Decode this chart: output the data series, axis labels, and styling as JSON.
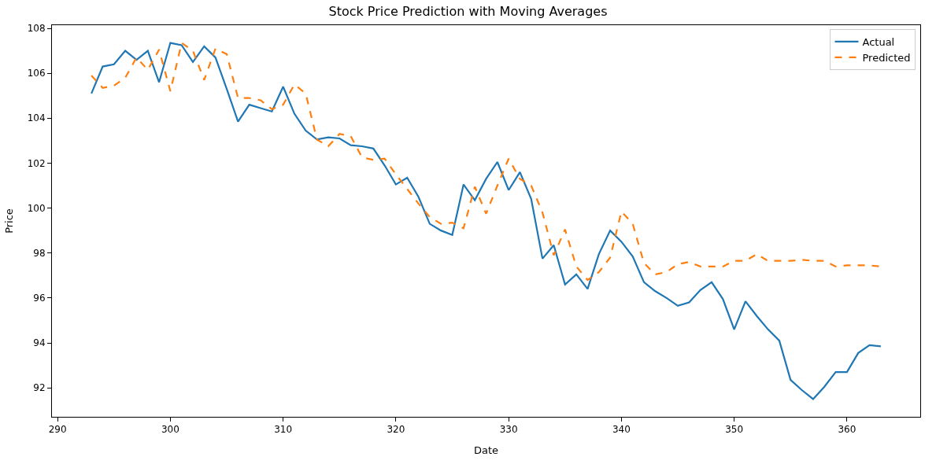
{
  "chart_data": {
    "type": "line",
    "title": "Stock Price Prediction with Moving Averages",
    "xlabel": "Date",
    "ylabel": "Price",
    "x": [
      293,
      294,
      295,
      296,
      297,
      298,
      299,
      300,
      301,
      302,
      303,
      304,
      305,
      306,
      307,
      308,
      309,
      310,
      311,
      312,
      313,
      314,
      315,
      316,
      317,
      318,
      319,
      320,
      321,
      322,
      323,
      324,
      325,
      326,
      327,
      328,
      329,
      330,
      331,
      332,
      333,
      334,
      335,
      336,
      337,
      338,
      339,
      340,
      341,
      342,
      343,
      344,
      345,
      346,
      347,
      348,
      349,
      350,
      351,
      352,
      353,
      354,
      355,
      356,
      357,
      358,
      359,
      360,
      361,
      362,
      363
    ],
    "series": [
      {
        "name": "Actual",
        "color": "#1f77b4",
        "line_style": "solid",
        "values": [
          105.1,
          106.3,
          106.4,
          107.0,
          106.6,
          107.0,
          105.6,
          107.35,
          107.25,
          106.5,
          107.2,
          106.7,
          105.3,
          103.85,
          104.6,
          104.45,
          104.3,
          105.4,
          104.2,
          103.45,
          103.05,
          103.15,
          103.1,
          102.8,
          102.75,
          102.65,
          101.9,
          101.05,
          101.35,
          100.5,
          99.3,
          99.0,
          98.8,
          101.05,
          100.35,
          101.3,
          102.05,
          100.8,
          101.6,
          100.4,
          97.75,
          98.35,
          96.6,
          97.05,
          96.4,
          97.95,
          99.0,
          98.5,
          97.85,
          96.7,
          96.3,
          96.0,
          95.65,
          95.8,
          96.35,
          96.7,
          95.95,
          94.6,
          95.85,
          95.2,
          94.6,
          94.1,
          92.35,
          91.9,
          91.5,
          92.05,
          92.7,
          92.7,
          93.55,
          93.9,
          93.85
        ]
      },
      {
        "name": "Predicted",
        "color": "#ff7f0e",
        "line_style": "dashed",
        "values": [
          105.9,
          105.35,
          105.45,
          105.8,
          106.7,
          106.15,
          107.05,
          105.2,
          107.35,
          107.0,
          105.7,
          107.1,
          106.85,
          104.9,
          104.9,
          104.8,
          104.4,
          104.6,
          105.5,
          105.1,
          103.05,
          102.75,
          103.3,
          103.2,
          102.25,
          102.15,
          102.2,
          101.5,
          100.85,
          100.2,
          99.6,
          99.3,
          99.35,
          99.1,
          100.95,
          99.75,
          101.0,
          102.2,
          101.3,
          101.0,
          99.8,
          97.9,
          99.05,
          97.4,
          96.8,
          97.15,
          97.8,
          99.85,
          99.3,
          97.55,
          97.05,
          97.15,
          97.5,
          97.6,
          97.4,
          97.4,
          97.4,
          97.65,
          97.65,
          97.95,
          97.65,
          97.65,
          97.65,
          97.7,
          97.65,
          97.65,
          97.4,
          97.45,
          97.45,
          97.45,
          97.4
        ]
      }
    ],
    "xlim": [
      289.5,
      366.5
    ],
    "xticks": [
      290,
      300,
      310,
      320,
      330,
      340,
      350,
      360
    ],
    "ylim": [
      90.71,
      108.14
    ],
    "yticks": [
      92,
      94,
      96,
      98,
      100,
      102,
      104,
      106,
      108
    ],
    "legend": "top right",
    "marker": "none"
  }
}
